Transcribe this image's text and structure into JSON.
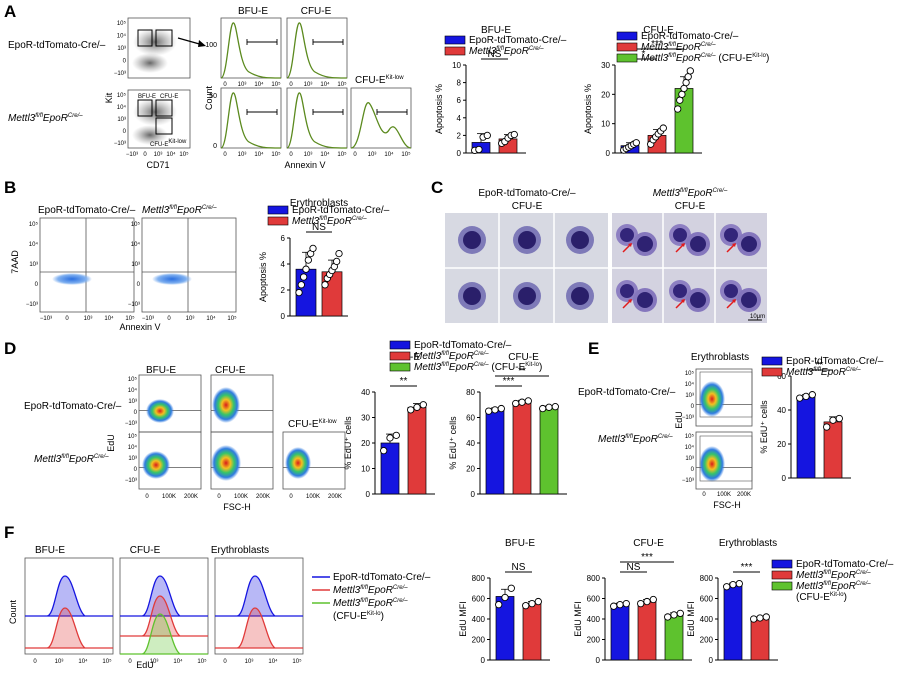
{
  "panel_letters": {
    "A": "A",
    "B": "B",
    "C": "C",
    "D": "D",
    "E": "E",
    "F": "F"
  },
  "genotypes": {
    "control": "EpoR-tdTomato-Cre/–",
    "ko_base": "Mettl3",
    "ko_sup": "fl/fl",
    "ko_mid": "EpoR",
    "ko_sup2": "Cre/–",
    "ko_suffix_kitlo": "(CFU-E",
    "ko_suffix_kitlo_sup": "Kit-lo",
    "ko_suffix_close": ")"
  },
  "colors": {
    "control": "#1515e0",
    "ko": "#e03a3a",
    "kitlo": "#5ec22e",
    "flow_green": "#5b8a1e"
  },
  "panelA": {
    "row1_label": "EpoR-tdTomato-Cre/–",
    "ylabel_dot": "Kit",
    "xlabel_dot": "CD71",
    "gate_bfu": "BFU-E",
    "gate_cfu": "CFU-E",
    "gate_kitlow": "CFU-E",
    "gate_kitlow_sup": "Kit-low",
    "hist_bfu": "BFU-E",
    "hist_cfu": "CFU-E",
    "hist_kitlow": "CFU-E",
    "hist_kitlow_sup": "Kit-low",
    "hist_ylabel": "Count",
    "hist_xlabel": "Annexin V",
    "ytick_100": "100",
    "ytick_50": "50",
    "ytick_0": "0",
    "flow_ticks": [
      "0",
      "10³",
      "10⁴",
      "10⁵"
    ],
    "flow_yticks": [
      "10⁵",
      "10⁴",
      "10³",
      "0",
      "−10³"
    ]
  },
  "chart_data": [
    {
      "type": "bar",
      "panel": "A",
      "title": "BFU-E",
      "ylabel": "Apoptosis %",
      "ylim": [
        0,
        10
      ],
      "yticks": [
        0,
        2,
        4,
        6,
        8,
        10
      ],
      "categories": [
        "EpoR-tdTomato-Cre/–",
        "Mettl3fl/flEpoRCre/–"
      ],
      "values": [
        1.2,
        1.6
      ],
      "errors": [
        1.0,
        0.5
      ],
      "points": [
        [
          0.3,
          0.4,
          1.8,
          2.0
        ],
        [
          1.1,
          1.3,
          1.7,
          2.0,
          2.1
        ]
      ],
      "significance": [
        {
          "from": 0,
          "to": 1,
          "label": "NS"
        }
      ]
    },
    {
      "type": "bar",
      "panel": "A",
      "title": "CFU-E",
      "ylabel": "Apoptosis %",
      "ylim": [
        0,
        30
      ],
      "yticks": [
        0,
        10,
        20,
        30
      ],
      "categories": [
        "EpoR-tdTomato-Cre/–",
        "Mettl3fl/flEpoRCre/–",
        "Mettl3fl/flEpoRCre/– (CFU-EKit-lo)"
      ],
      "values": [
        2.5,
        6.0,
        22.0
      ],
      "errors": [
        1.0,
        2.0,
        4.0
      ],
      "points": [
        [
          1.0,
          1.5,
          2.0,
          2.5,
          3.0,
          3.5
        ],
        [
          3.0,
          4.5,
          5.5,
          6.5,
          7.5,
          8.5
        ],
        [
          15,
          18,
          20,
          22,
          24,
          26,
          28
        ]
      ],
      "significance": [
        {
          "from": 0,
          "to": 1,
          "label": "*"
        },
        {
          "from": 0,
          "to": 2,
          "label": "***"
        }
      ]
    },
    {
      "type": "bar",
      "panel": "B",
      "title": "Erythroblasts",
      "ylabel": "Apoptosis %",
      "ylim": [
        0,
        6
      ],
      "yticks": [
        0,
        2,
        4,
        6
      ],
      "categories": [
        "EpoR-tdTomato-Cre/–",
        "Mettl3fl/flEpoRCre/–"
      ],
      "values": [
        3.6,
        3.4
      ],
      "errors": [
        1.3,
        0.9
      ],
      "points": [
        [
          1.8,
          2.4,
          3.0,
          3.6,
          4.3,
          4.8,
          5.2
        ],
        [
          2.4,
          2.9,
          3.2,
          3.5,
          3.8,
          4.2,
          4.8
        ]
      ],
      "significance": [
        {
          "from": 0,
          "to": 1,
          "label": "NS"
        }
      ]
    },
    {
      "type": "bar",
      "panel": "D",
      "title": "BFU-E",
      "ylabel": "% EdU⁺ cells",
      "ylim": [
        0,
        40
      ],
      "yticks": [
        0,
        10,
        20,
        30,
        40
      ],
      "categories": [
        "EpoR-tdTomato-Cre/–",
        "Mettl3fl/flEpoRCre/–"
      ],
      "values": [
        20,
        34
      ],
      "errors": [
        3.5,
        1.5
      ],
      "points": [
        [
          17,
          22,
          23
        ],
        [
          33,
          34,
          35
        ]
      ],
      "significance": [
        {
          "from": 0,
          "to": 1,
          "label": "**"
        }
      ]
    },
    {
      "type": "bar",
      "panel": "D",
      "title": "CFU-E",
      "ylabel": "% EdU⁺ cells",
      "ylim": [
        0,
        80
      ],
      "yticks": [
        0,
        20,
        40,
        60,
        80
      ],
      "categories": [
        "EpoR-tdTomato-Cre/–",
        "Mettl3fl/flEpoRCre/–",
        "Mettl3fl/flEpoRCre/– (CFU-EKit-lo)"
      ],
      "values": [
        66,
        72,
        68
      ],
      "errors": [
        1.5,
        1.5,
        1.0
      ],
      "points": [
        [
          65,
          66,
          67
        ],
        [
          71,
          72,
          73
        ],
        [
          67,
          68,
          68.5
        ]
      ],
      "significance": [
        {
          "from": 0,
          "to": 1,
          "label": "***"
        },
        {
          "from": 0,
          "to": 2,
          "label": "**"
        }
      ]
    },
    {
      "type": "bar",
      "panel": "E",
      "title": "",
      "ylabel": "% EdU⁺ cells",
      "ylim": [
        0,
        60
      ],
      "yticks": [
        0,
        20,
        40,
        60
      ],
      "categories": [
        "EpoR-tdTomato-Cre/–",
        "Mettl3fl/flEpoRCre/–"
      ],
      "values": [
        48,
        33
      ],
      "errors": [
        1.0,
        3.0
      ],
      "points": [
        [
          47,
          48,
          49
        ],
        [
          30,
          34,
          35
        ]
      ],
      "significance": [
        {
          "from": 0,
          "to": 1,
          "label": "**"
        }
      ]
    },
    {
      "type": "bar",
      "panel": "F",
      "title": "BFU-E",
      "ylabel": "EdU MFI",
      "ylim": [
        0,
        800
      ],
      "yticks": [
        0,
        200,
        400,
        600,
        800
      ],
      "categories": [
        "EpoR-tdTomato-Cre/–",
        "Mettl3fl/flEpoRCre/–"
      ],
      "values": [
        620,
        550
      ],
      "errors": [
        70,
        20
      ],
      "points": [
        [
          540,
          610,
          700
        ],
        [
          530,
          550,
          570
        ]
      ],
      "significance": [
        {
          "from": 0,
          "to": 1,
          "label": "NS"
        }
      ]
    },
    {
      "type": "bar",
      "panel": "F",
      "title": "CFU-E",
      "ylabel": "EdU MFI",
      "ylim": [
        0,
        800
      ],
      "yticks": [
        0,
        200,
        400,
        600,
        800
      ],
      "categories": [
        "EpoR-tdTomato-Cre/–",
        "Mettl3fl/flEpoRCre/–",
        "Mettl3fl/flEpoRCre/– (CFU-EKit-lo)"
      ],
      "values": [
        540,
        570,
        440
      ],
      "errors": [
        15,
        20,
        20
      ],
      "points": [
        [
          525,
          540,
          550
        ],
        [
          550,
          570,
          590
        ],
        [
          420,
          440,
          455
        ]
      ],
      "significance": [
        {
          "from": 0,
          "to": 1,
          "label": "NS"
        },
        {
          "from": 0,
          "to": 2,
          "label": "***"
        }
      ]
    },
    {
      "type": "bar",
      "panel": "F",
      "title": "Erythroblasts",
      "ylabel": "EdU MFI",
      "ylim": [
        0,
        800
      ],
      "yticks": [
        0,
        200,
        400,
        600,
        800
      ],
      "categories": [
        "EpoR-tdTomato-Cre/–",
        "Mettl3fl/flEpoRCre/–"
      ],
      "values": [
        730,
        410
      ],
      "errors": [
        20,
        10
      ],
      "points": [
        [
          715,
          735,
          745
        ],
        [
          400,
          410,
          420
        ]
      ],
      "significance": [
        {
          "from": 0,
          "to": 1,
          "label": "***"
        }
      ]
    }
  ],
  "panelB": {
    "title_ctrl": "EpoR-tdTomato-Cre/–",
    "ylabel": "7AAD",
    "xlabel": "Annexin V"
  },
  "panelC": {
    "title_ctrl_1": "EpoR-tdTomato-Cre/–",
    "title_ctrl_2": "CFU-E",
    "title_ko_2": "CFU-E",
    "scale": "10μm"
  },
  "panelD": {
    "gate_bfu": "BFU-E",
    "gate_cfu": "CFU-E",
    "gate_kitlow": "CFU-E",
    "gate_kitlow_sup": "Kit-low",
    "row1_label": "EpoR-tdTomato-Cre/–",
    "ylabel": "EdU",
    "xlabel": "FSC-H",
    "xticks": [
      "0",
      "100K",
      "200K"
    ]
  },
  "panelE": {
    "title": "Erythroblasts",
    "row1_label": "EpoR-tdTomato-Cre/–",
    "ylabel": "EdU",
    "xlabel": "FSC-H"
  },
  "panelF": {
    "hist_bfu": "BFU-E",
    "hist_cfu": "CFU-E",
    "hist_ery": "Erythroblasts",
    "ylabel": "Count",
    "xlabel": "EdU",
    "legend_ctrl": "EpoR-tdTomato-Cre/–",
    "legend_kitlo_line": "(CFU-E"
  }
}
